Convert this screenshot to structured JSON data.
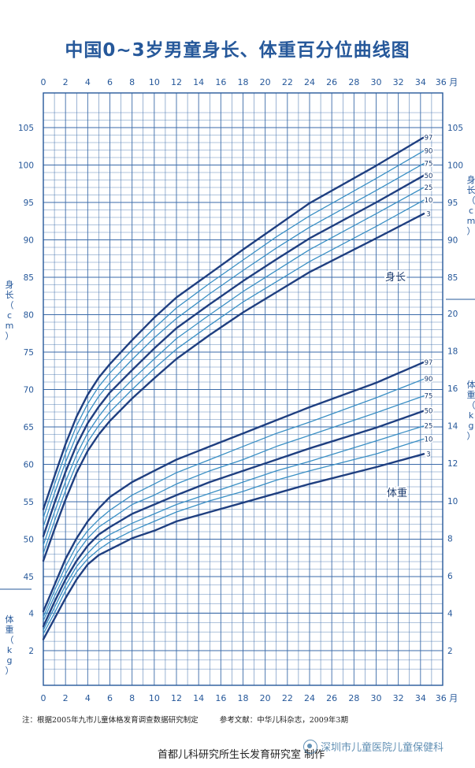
{
  "chart_data": {
    "type": "line",
    "title": "中国0~3岁男童身长、体重百分位曲线图",
    "x_unit": "36 月",
    "x_ticks": [
      0,
      2,
      4,
      6,
      8,
      10,
      12,
      14,
      16,
      18,
      20,
      22,
      24,
      26,
      28,
      30,
      32,
      34
    ],
    "xlim": [
      0,
      36
    ],
    "length": {
      "label": "身长",
      "axis_title": "身长（cm）",
      "ylim": [
        44,
        107
      ],
      "left_ticks": [
        45,
        50,
        55,
        60,
        65,
        70,
        75,
        80,
        85,
        90,
        95,
        100,
        105
      ],
      "right_ticks": [
        85,
        90,
        95,
        100,
        105
      ],
      "x": [
        0,
        1,
        2,
        3,
        4,
        5,
        6,
        8,
        10,
        12,
        15,
        18,
        21,
        24,
        30,
        35
      ],
      "series": [
        {
          "name": "97",
          "values": [
            54.0,
            58.4,
            62.7,
            66.4,
            69.3,
            71.6,
            73.4,
            76.6,
            79.6,
            82.3,
            85.5,
            88.7,
            91.8,
            94.9,
            99.9,
            103.7
          ]
        },
        {
          "name": "90",
          "values": [
            52.9,
            57.3,
            61.5,
            65.2,
            68.1,
            70.4,
            72.2,
            75.3,
            78.2,
            80.9,
            84.2,
            87.3,
            90.4,
            93.2,
            98.2,
            101.9
          ]
        },
        {
          "name": "75",
          "values": [
            51.7,
            56.1,
            60.3,
            63.9,
            66.8,
            69.1,
            70.9,
            74.0,
            76.9,
            79.5,
            82.8,
            85.9,
            88.9,
            91.7,
            96.6,
            100.2
          ]
        },
        {
          "name": "50",
          "values": [
            50.4,
            54.8,
            59.0,
            62.6,
            65.5,
            67.7,
            69.6,
            72.6,
            75.5,
            78.2,
            81.4,
            84.5,
            87.4,
            90.2,
            95.0,
            98.6
          ]
        },
        {
          "name": "25",
          "values": [
            49.2,
            53.6,
            57.7,
            61.3,
            64.2,
            66.4,
            68.3,
            71.3,
            74.1,
            76.8,
            80.0,
            83.1,
            85.9,
            88.7,
            93.5,
            97.0
          ]
        },
        {
          "name": "10",
          "values": [
            48.1,
            52.4,
            56.5,
            60.1,
            63.0,
            65.2,
            67.0,
            70.0,
            72.8,
            75.4,
            78.6,
            81.7,
            84.4,
            87.1,
            91.8,
            95.3
          ]
        },
        {
          "name": "3",
          "values": [
            47.1,
            51.3,
            55.3,
            58.9,
            61.8,
            64.0,
            65.8,
            68.8,
            71.5,
            74.1,
            77.3,
            80.3,
            83.0,
            85.7,
            90.2,
            93.5
          ]
        }
      ]
    },
    "weight": {
      "label": "体重",
      "axis_title": "体重（kg）",
      "ylim": [
        1,
        22
      ],
      "left_ticks": [
        2,
        4
      ],
      "right_ticks": [
        2,
        4,
        6,
        8,
        10,
        12,
        14,
        16,
        18,
        20
      ],
      "x": [
        0,
        1,
        2,
        3,
        4,
        5,
        6,
        8,
        10,
        12,
        15,
        18,
        21,
        24,
        30,
        35
      ],
      "series": [
        {
          "name": "97",
          "values": [
            4.1,
            5.5,
            6.9,
            8.0,
            8.9,
            9.6,
            10.2,
            11.0,
            11.6,
            12.2,
            12.9,
            13.6,
            14.3,
            15.0,
            16.3,
            17.4
          ]
        },
        {
          "name": "90",
          "values": [
            3.8,
            5.2,
            6.5,
            7.6,
            8.4,
            9.0,
            9.5,
            10.3,
            10.9,
            11.5,
            12.2,
            12.9,
            13.6,
            14.2,
            15.5,
            16.5
          ]
        },
        {
          "name": "75",
          "values": [
            3.6,
            4.9,
            6.1,
            7.2,
            8.0,
            8.6,
            9.0,
            9.8,
            10.3,
            10.9,
            11.6,
            12.2,
            12.9,
            13.5,
            14.7,
            15.6
          ]
        },
        {
          "name": "50",
          "values": [
            3.3,
            4.6,
            5.8,
            6.8,
            7.6,
            8.2,
            8.6,
            9.3,
            9.8,
            10.3,
            11.0,
            11.6,
            12.2,
            12.8,
            13.9,
            14.8
          ]
        },
        {
          "name": "25",
          "values": [
            3.1,
            4.3,
            5.5,
            6.5,
            7.2,
            7.8,
            8.2,
            8.8,
            9.3,
            9.8,
            10.4,
            11.0,
            11.6,
            12.1,
            13.2,
            14.0
          ]
        },
        {
          "name": "10",
          "values": [
            2.9,
            4.0,
            5.2,
            6.2,
            6.9,
            7.4,
            7.8,
            8.4,
            8.9,
            9.4,
            10.0,
            10.5,
            11.1,
            11.6,
            12.5,
            13.3
          ]
        },
        {
          "name": "3",
          "values": [
            2.6,
            3.7,
            4.8,
            5.8,
            6.6,
            7.1,
            7.4,
            8.0,
            8.4,
            8.9,
            9.4,
            9.9,
            10.4,
            10.9,
            11.8,
            12.5
          ]
        }
      ]
    }
  },
  "footer": {
    "note": "注：根据2005年九市儿童体格发育调查数据研究制定",
    "reference": "参考文献：中华儿科杂志，2009年3期",
    "maker": "首都儿科研究所生长发育研究室 制作",
    "watermark": "深圳市儿童医院儿童保健科"
  },
  "colors": {
    "ink": "#26589a",
    "grid": "#3a6aa8",
    "light_curve": "#3a8fc4",
    "dark_curve": "#1f3f80"
  }
}
